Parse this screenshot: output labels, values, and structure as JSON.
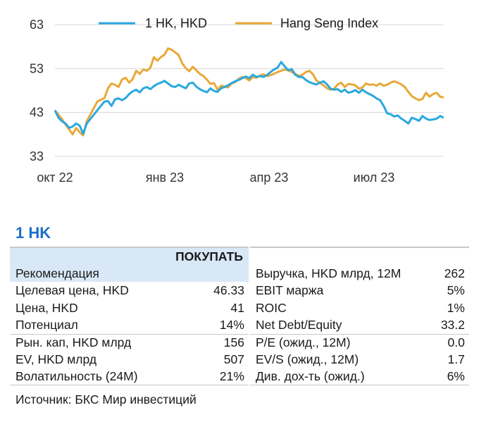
{
  "chart_data": {
    "type": "line",
    "x_labels": [
      "окт 22",
      "янв 23",
      "апр 23",
      "июл 23"
    ],
    "y_ticks": [
      33,
      43,
      53,
      63
    ],
    "ylim": [
      33,
      63
    ],
    "grid": true,
    "legend_placement": "top",
    "series": [
      {
        "name": "1 HK, HKD",
        "color": "#2aa8df",
        "values": [
          43.5,
          41.8,
          41,
          40.5,
          39.5,
          39.8,
          40.5,
          40,
          38.2,
          40.5,
          41.5,
          42.5,
          43.5,
          44.5,
          45.5,
          45.6,
          44.5,
          46,
          46.2,
          45.8,
          46.3,
          47.2,
          47.8,
          48.2,
          47.6,
          48.5,
          48.8,
          48.3,
          49,
          49.5,
          49.8,
          50.2,
          49.6,
          49,
          48.8,
          49.3,
          48.9,
          48.5,
          49.6,
          49.8,
          48.9,
          48.3,
          47.9,
          47.6,
          48.5,
          47.9,
          47.7,
          48.5,
          48.8,
          49.2,
          49.7,
          50.1,
          50.4,
          50.8,
          51.2,
          50.8,
          51.6,
          51.1,
          51.3,
          51.1,
          51.5,
          52.2,
          52.8,
          53.2,
          54.5,
          53.5,
          52.6,
          52.9,
          51.6,
          51.1,
          51.1,
          50.4,
          49.9,
          49.6,
          49.4,
          49.8,
          50.1,
          49.4,
          48.4,
          48.2,
          48.3,
          47.7,
          48.2,
          47.5,
          47.7,
          48.1,
          47.5,
          48.2,
          47.6,
          47.2,
          46.8,
          46.2,
          45.8,
          44.5,
          42.8,
          42.6,
          42.1,
          42.3,
          41.6,
          41.1,
          40.5,
          41.8,
          41.5,
          41.1,
          42.2,
          41.6,
          41.3,
          41.4,
          41.6,
          42.2,
          41.8
        ]
      },
      {
        "name": "Hang Seng Index",
        "color": "#e8a838",
        "values": [
          43.5,
          42.5,
          41.5,
          40.2,
          39.2,
          38,
          39.5,
          38.5,
          37.8,
          41,
          42.5,
          44,
          45.5,
          45.9,
          46.3,
          48.5,
          49.6,
          49.3,
          48.8,
          50.5,
          50.9,
          49.8,
          50.6,
          52.5,
          51.8,
          52.8,
          52.5,
          53.2,
          55.6,
          54.8,
          55.6,
          56.2,
          57.6,
          57.3,
          56.7,
          56.1,
          54.2,
          53.1,
          52.4,
          53.4,
          52.6,
          51.8,
          51.3,
          50.5,
          49.5,
          49.7,
          48.2,
          49.1,
          48.9,
          48.7,
          49.6,
          49.9,
          50.7,
          51.1,
          50.8,
          50.3,
          51.1,
          50.9,
          51.4,
          51.7,
          51.3,
          51.5,
          51.8,
          52.2,
          52.5,
          52.8,
          52.6,
          52.2,
          51.8,
          51.3,
          51.6,
          52.2,
          52.5,
          51.7,
          50.3,
          49.7,
          49.2,
          48.5,
          48.2,
          48.4,
          49.4,
          49.8,
          48.8,
          49.5,
          49.4,
          49.2,
          48.4,
          48.7,
          49.6,
          49.3,
          49.4,
          49.1,
          49.6,
          49.1,
          49.3,
          49.8,
          50.1,
          49.8,
          49.4,
          48.8,
          47.7,
          46.7,
          46.2,
          45.8,
          46.1,
          47.5,
          46.6,
          47.2,
          47.5,
          46.6,
          46.4
        ]
      }
    ]
  },
  "ticker": "1 HK",
  "table": {
    "recommendation_label": "Рекомендация",
    "recommendation_value": "ПОКУПАТЬ",
    "left_group1": [
      {
        "label": "Целевая цена, HKD",
        "value": "46.33"
      },
      {
        "label": "Цена, HKD",
        "value": "41"
      },
      {
        "label": "Потенциал",
        "value": "14%"
      }
    ],
    "left_group2": [
      {
        "label": "Рын. кап, HKD млрд",
        "value": "156"
      },
      {
        "label": "EV, HKD млрд",
        "value": "507"
      },
      {
        "label": "Волатильность (24M)",
        "value": "21%"
      }
    ],
    "right_header": {
      "label": "Выручка, HKD млрд, 12M",
      "value": "262"
    },
    "right_group1": [
      {
        "label": "EBIT маржа",
        "value": "5%"
      },
      {
        "label": "ROIC",
        "value": "1%"
      },
      {
        "label": "Net Debt/Equity",
        "value": "33.2"
      }
    ],
    "right_group2": [
      {
        "label": "P/E (ожид., 12M)",
        "value": "0.0"
      },
      {
        "label": "EV/S (ожид., 12M)",
        "value": "1.7"
      },
      {
        "label": "Див. дох-ть (ожид.)",
        "value": "6%"
      }
    ]
  },
  "source": "Источник: БКС Мир инвестиций"
}
